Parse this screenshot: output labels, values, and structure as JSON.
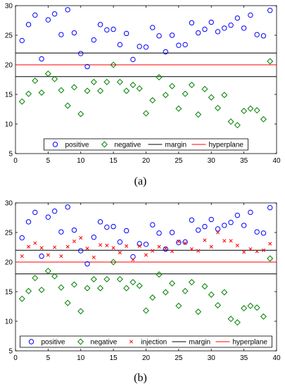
{
  "chart_data": [
    {
      "type": "scatter",
      "caption": "(a)",
      "xlim": [
        0,
        40
      ],
      "ylim": [
        5,
        30
      ],
      "x_ticks": [
        "0",
        "5",
        "10",
        "15",
        "20",
        "25",
        "30",
        "35",
        "40"
      ],
      "y_ticks": [
        "5",
        "10",
        "15",
        "20",
        "25",
        "30"
      ],
      "grid": false,
      "legend_position": "bottom",
      "legend": [
        "positive",
        "negative",
        "margin",
        "hyperplane"
      ],
      "colors": {
        "positive": "#0000ff",
        "negative": "#008000",
        "margin": "#000000",
        "hyperplane": "#ff0000"
      },
      "series": [
        {
          "name": "positive",
          "marker": "circle",
          "x": [
            1,
            2,
            3,
            4,
            5,
            6,
            7,
            8,
            9,
            10,
            11,
            12,
            13,
            14,
            15,
            16,
            17,
            18,
            19,
            20,
            21,
            22,
            23,
            24,
            25,
            26,
            27,
            28,
            29,
            30,
            31,
            32,
            33,
            34,
            35,
            36,
            37,
            38,
            39
          ],
          "y": [
            24.1,
            26.8,
            28.4,
            21.0,
            27.6,
            28.6,
            25.1,
            29.3,
            25.4,
            21.9,
            19.7,
            24.2,
            26.8,
            25.9,
            26.0,
            23.4,
            25.3,
            20.9,
            23.1,
            23.0,
            26.3,
            24.9,
            22.2,
            25.0,
            23.3,
            23.4,
            27.1,
            25.4,
            26.0,
            27.2,
            25.6,
            26.2,
            26.7,
            27.9,
            26.2,
            28.4,
            25.1,
            24.9,
            29.2
          ]
        },
        {
          "name": "negative",
          "marker": "diamond",
          "x": [
            1,
            2,
            3,
            4,
            5,
            6,
            7,
            8,
            9,
            10,
            11,
            12,
            13,
            14,
            15,
            16,
            17,
            18,
            19,
            20,
            21,
            22,
            23,
            24,
            25,
            26,
            27,
            28,
            29,
            30,
            31,
            32,
            33,
            34,
            35,
            36,
            37,
            38,
            39
          ],
          "y": [
            13.8,
            15.1,
            17.3,
            15.3,
            18.5,
            17.6,
            15.7,
            13.1,
            16.2,
            11.7,
            15.6,
            17.1,
            15.6,
            17.1,
            20.0,
            17.1,
            15.6,
            16.6,
            16.0,
            11.8,
            14.0,
            17.9,
            14.9,
            16.4,
            12.6,
            15.1,
            16.6,
            11.6,
            15.9,
            14.5,
            12.7,
            14.9,
            10.4,
            9.8,
            12.2,
            12.6,
            12.3,
            10.8,
            20.6
          ]
        },
        {
          "name": "margin",
          "type": "hline",
          "y": [
            22,
            18
          ]
        },
        {
          "name": "hyperplane",
          "type": "hline",
          "y": [
            20
          ]
        }
      ]
    },
    {
      "type": "scatter",
      "caption": "(b)",
      "xlim": [
        0,
        40
      ],
      "ylim": [
        5,
        30
      ],
      "x_ticks": [
        "0",
        "5",
        "10",
        "15",
        "20",
        "25",
        "30",
        "35",
        "40"
      ],
      "y_ticks": [
        "5",
        "10",
        "15",
        "20",
        "25",
        "30"
      ],
      "grid": false,
      "legend_position": "bottom",
      "legend": [
        "positive",
        "negative",
        "injection",
        "margin",
        "hyperplane"
      ],
      "colors": {
        "positive": "#0000ff",
        "negative": "#008000",
        "injection": "#ff0000",
        "margin": "#000000",
        "hyperplane": "#ff0000"
      },
      "series": [
        {
          "name": "positive",
          "marker": "circle",
          "x": [
            1,
            2,
            3,
            4,
            5,
            6,
            7,
            8,
            9,
            10,
            11,
            12,
            13,
            14,
            15,
            16,
            17,
            18,
            19,
            20,
            21,
            22,
            23,
            24,
            25,
            26,
            27,
            28,
            29,
            30,
            31,
            32,
            33,
            34,
            35,
            36,
            37,
            38,
            39
          ],
          "y": [
            24.1,
            26.8,
            28.4,
            21.0,
            27.6,
            28.6,
            25.1,
            29.3,
            25.4,
            21.9,
            19.7,
            24.2,
            26.8,
            25.9,
            26.0,
            23.4,
            25.3,
            20.9,
            23.1,
            23.0,
            26.3,
            24.9,
            22.2,
            25.0,
            23.3,
            23.4,
            27.1,
            25.4,
            26.0,
            27.2,
            25.6,
            26.2,
            26.7,
            27.9,
            26.2,
            28.4,
            25.1,
            24.9,
            29.2
          ]
        },
        {
          "name": "negative",
          "marker": "diamond",
          "x": [
            1,
            2,
            3,
            4,
            5,
            6,
            7,
            8,
            9,
            10,
            11,
            12,
            13,
            14,
            15,
            16,
            17,
            18,
            19,
            20,
            21,
            22,
            23,
            24,
            25,
            26,
            27,
            28,
            29,
            30,
            31,
            32,
            33,
            34,
            35,
            36,
            37,
            38,
            39
          ],
          "y": [
            13.8,
            15.1,
            17.3,
            15.3,
            18.5,
            17.6,
            15.7,
            13.1,
            16.2,
            11.7,
            15.6,
            17.1,
            15.6,
            17.1,
            20.0,
            17.1,
            15.6,
            16.6,
            16.0,
            11.8,
            14.0,
            17.9,
            14.9,
            16.4,
            12.6,
            15.1,
            16.6,
            11.6,
            15.9,
            14.5,
            12.7,
            14.9,
            10.4,
            9.8,
            12.2,
            12.6,
            12.3,
            10.8,
            20.6
          ]
        },
        {
          "name": "injection",
          "marker": "x",
          "x": [
            1,
            2,
            3,
            4,
            5,
            6,
            7,
            8,
            9,
            10,
            11,
            12,
            13,
            14,
            15,
            16,
            17,
            18,
            19,
            20,
            21,
            22,
            23,
            24,
            25,
            26,
            27,
            28,
            29,
            30,
            31,
            32,
            33,
            34,
            35,
            36,
            37,
            38,
            39
          ],
          "y": [
            21.0,
            22.6,
            23.2,
            22.4,
            21.2,
            22.5,
            21.0,
            22.6,
            23.5,
            24.1,
            22.3,
            20.8,
            22.9,
            22.8,
            22.4,
            21.6,
            22.7,
            20.4,
            22.7,
            21.2,
            21.9,
            22.6,
            22.3,
            21.8,
            23.5,
            23.2,
            22.2,
            21.9,
            23.7,
            22.6,
            25.0,
            23.6,
            23.6,
            22.8,
            21.7,
            22.2,
            21.8,
            22.0,
            23.1
          ]
        },
        {
          "name": "margin",
          "type": "hline",
          "y": [
            22,
            18
          ]
        },
        {
          "name": "hyperplane",
          "type": "hline",
          "y": [
            20
          ]
        }
      ]
    }
  ]
}
